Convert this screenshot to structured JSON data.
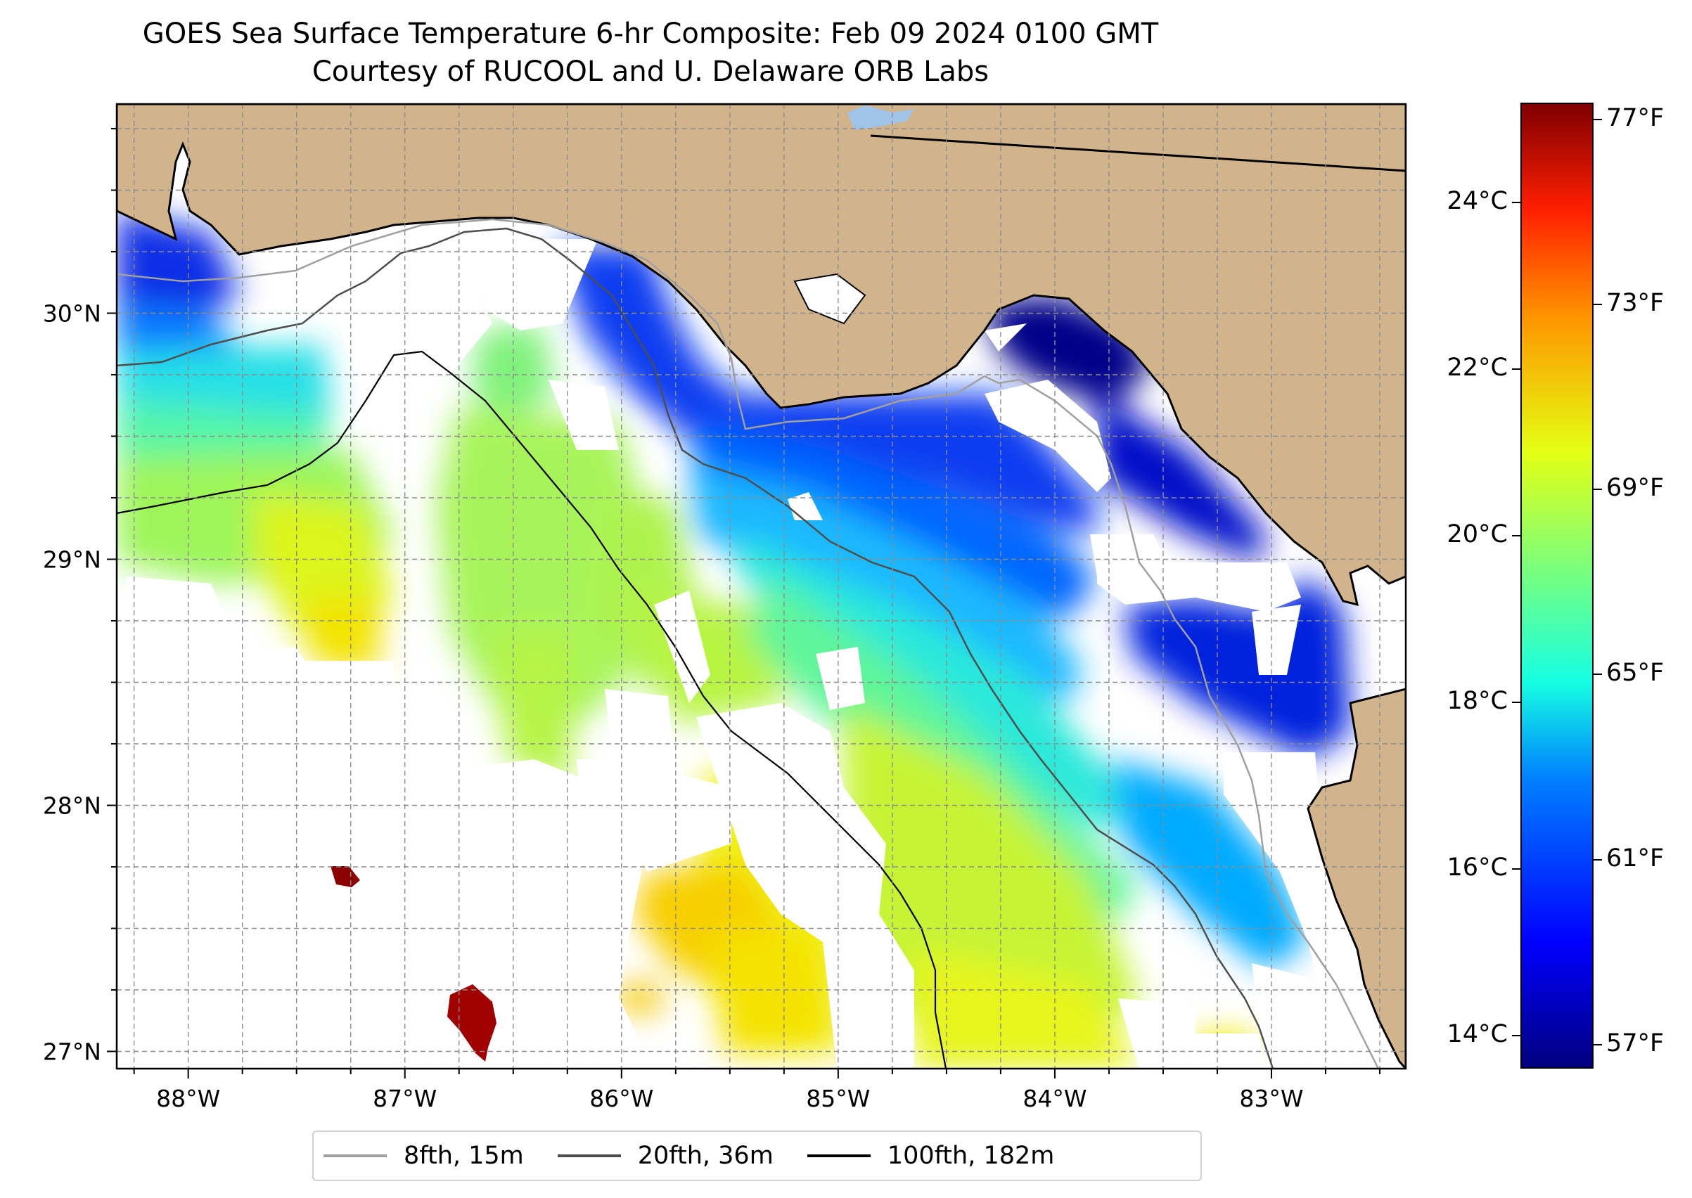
{
  "title": {
    "line1": "GOES Sea Surface Temperature 6-hr Composite: Feb 09 2024 0100 GMT",
    "line2": "Courtesy of RUCOOL and U. Delaware ORB Labs"
  },
  "map": {
    "extent": {
      "lon_min": -88.33,
      "lon_max": -82.38,
      "lat_min": 26.93,
      "lat_max": 30.85
    },
    "longitude_ticks": [
      {
        "value": -88,
        "label": "88°W"
      },
      {
        "value": -87,
        "label": "87°W"
      },
      {
        "value": -86,
        "label": "86°W"
      },
      {
        "value": -85,
        "label": "85°W"
      },
      {
        "value": -84,
        "label": "84°W"
      },
      {
        "value": -83,
        "label": "83°W"
      }
    ],
    "latitude_ticks": [
      {
        "value": 27,
        "label": "27°N"
      },
      {
        "value": 28,
        "label": "28°N"
      },
      {
        "value": 29,
        "label": "29°N"
      },
      {
        "value": 30,
        "label": "30°N"
      }
    ],
    "land_color": "#d2b48c",
    "no_data_color": "#ffffff",
    "gridlines": "dashed gray every 0.25°"
  },
  "legend": {
    "placement": "below map",
    "items": [
      {
        "label": "8fth, 15m",
        "color": "#a0a0a0"
      },
      {
        "label": "20fth, 36m",
        "color": "#4d4d4d"
      },
      {
        "label": "100fth, 182m",
        "color": "#000000"
      }
    ]
  },
  "colorbar": {
    "colormap": "jet",
    "range_celsius": [
      13.6,
      25.2
    ],
    "celsius_ticks": [
      {
        "value": 14,
        "label": "14°C"
      },
      {
        "value": 16,
        "label": "16°C"
      },
      {
        "value": 18,
        "label": "18°C"
      },
      {
        "value": 20,
        "label": "20°C"
      },
      {
        "value": 22,
        "label": "22°C"
      },
      {
        "value": 24,
        "label": "24°C"
      }
    ],
    "fahrenheit_ticks": [
      {
        "value": 57,
        "label": "57°F"
      },
      {
        "value": 61,
        "label": "61°F"
      },
      {
        "value": 65,
        "label": "65°F"
      },
      {
        "value": 69,
        "label": "69°F"
      },
      {
        "value": 73,
        "label": "73°F"
      },
      {
        "value": 77,
        "label": "77°F"
      }
    ]
  }
}
